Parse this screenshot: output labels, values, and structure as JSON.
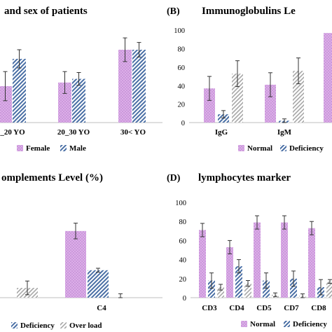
{
  "colors": {
    "normal_fill": "#d9a6e6",
    "normal_dot": "#c58ad6",
    "blue_fill": "#ffffff",
    "blue_stripe": "#4a6fa5",
    "gray_stripe": "#a6a6a6",
    "error_bar": "#333333"
  },
  "chart_data": [
    {
      "panel_label": "",
      "title": "and sex of patients",
      "type": "bar",
      "categories": [
        "_20 YO",
        "20_30 YO",
        "30< YO"
      ],
      "series": [
        {
          "name": "Female",
          "style": "pink-dots",
          "values": [
            40,
            44,
            80
          ],
          "errors": [
            16,
            12,
            13
          ]
        },
        {
          "name": "Male",
          "style": "blue-hatch",
          "values": [
            70,
            48,
            80
          ],
          "errors": [
            10,
            7,
            8
          ]
        }
      ],
      "ylim": [
        0,
        100
      ],
      "show_yaxis": false
    },
    {
      "panel_label": "(B)",
      "title": "Immunoglobulins Le",
      "type": "bar",
      "categories": [
        "IgG",
        "IgM",
        ""
      ],
      "series": [
        {
          "name": "Normal",
          "style": "pink-dots",
          "values": [
            37,
            41,
            97
          ],
          "errors": [
            13,
            13,
            0
          ]
        },
        {
          "name": "Deficiency",
          "style": "blue-hatch",
          "values": [
            9,
            2,
            0
          ],
          "errors": [
            4,
            2,
            0
          ]
        },
        {
          "name": "",
          "style": "gray-hatch",
          "values": [
            53,
            56,
            0
          ],
          "errors": [
            14,
            14,
            0
          ]
        }
      ],
      "yticks": [
        0,
        20,
        40,
        60,
        80,
        100
      ],
      "ylim": [
        0,
        110
      ],
      "show_yaxis": true
    },
    {
      "panel_label": "",
      "title": "omplements Level (%)",
      "type": "bar",
      "categories": [
        "",
        "C4"
      ],
      "series": [
        {
          "name": "",
          "style": "pink-dots",
          "values": [
            0,
            68
          ],
          "errors": [
            0,
            8
          ]
        },
        {
          "name": "Deficiency",
          "style": "blue-hatch",
          "values": [
            0,
            28
          ],
          "errors": [
            0,
            2
          ]
        },
        {
          "name": "Over load",
          "style": "gray-hatch",
          "values": [
            10,
            0
          ],
          "errors": [
            7,
            4
          ]
        }
      ],
      "ylim": [
        0,
        100
      ],
      "show_yaxis": false
    },
    {
      "panel_label": "(D)",
      "title": "lymphocytes marker",
      "type": "bar",
      "categories": [
        "CD3",
        "CD4",
        "CD5",
        "CD7",
        "CD8"
      ],
      "series": [
        {
          "name": "Normal",
          "style": "pink-dots",
          "values": [
            71,
            53,
            79,
            79,
            73
          ],
          "errors": [
            7,
            7,
            7,
            7,
            7
          ]
        },
        {
          "name": "Deficiency",
          "style": "blue-hatch",
          "values": [
            18,
            33,
            18,
            20,
            11
          ],
          "errors": [
            8,
            7,
            8,
            8,
            8
          ]
        },
        {
          "name": "",
          "style": "gray-hatch",
          "values": [
            11,
            15,
            3,
            2,
            17
          ],
          "errors": [
            3,
            3,
            2,
            2,
            2
          ]
        }
      ],
      "yticks": [
        0,
        20,
        40,
        60,
        80,
        100
      ],
      "ylim": [
        0,
        100
      ],
      "show_yaxis": true
    }
  ]
}
